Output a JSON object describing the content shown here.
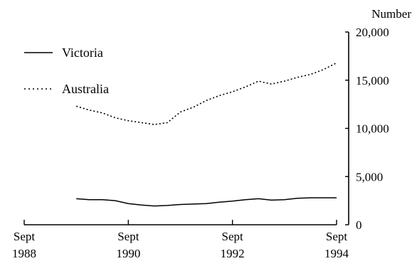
{
  "chart_data": {
    "type": "line",
    "title": "",
    "xlabel": "",
    "ylabel": "Number",
    "ylim": [
      0,
      20000
    ],
    "xlim": [
      1988.75,
      1994.75
    ],
    "y_ticks": [
      0,
      5000,
      10000,
      15000,
      20000
    ],
    "y_tick_labels": [
      "0",
      "5,000",
      "10,000",
      "15,000",
      "20,000"
    ],
    "x_ticks": [
      {
        "value": 1988.75,
        "line1": "Sept",
        "line2": "1988"
      },
      {
        "value": 1990.75,
        "line1": "Sept",
        "line2": "1990"
      },
      {
        "value": 1992.75,
        "line1": "Sept",
        "line2": "1992"
      },
      {
        "value": 1994.75,
        "line1": "Sept",
        "line2": "1994"
      }
    ],
    "legend_position": "top-left",
    "grid": false,
    "series": [
      {
        "name": "Victoria",
        "style": "solid",
        "color": "#000000",
        "x": [
          1989.75,
          1990.0,
          1990.25,
          1990.5,
          1990.75,
          1991.0,
          1991.25,
          1991.5,
          1991.75,
          1992.0,
          1992.25,
          1992.5,
          1992.75,
          1993.0,
          1993.25,
          1993.5,
          1993.75,
          1994.0,
          1994.25,
          1994.5,
          1994.75
        ],
        "values": [
          2700,
          2600,
          2600,
          2500,
          2200,
          2050,
          1950,
          2000,
          2100,
          2150,
          2200,
          2350,
          2450,
          2600,
          2700,
          2550,
          2600,
          2750,
          2800,
          2800,
          2800
        ]
      },
      {
        "name": "Australia",
        "style": "dotted",
        "color": "#000000",
        "x": [
          1989.75,
          1990.0,
          1990.25,
          1990.5,
          1990.75,
          1991.0,
          1991.25,
          1991.5,
          1991.75,
          1992.0,
          1992.25,
          1992.5,
          1992.75,
          1993.0,
          1993.25,
          1993.5,
          1993.75,
          1994.0,
          1994.25,
          1994.5,
          1994.75
        ],
        "values": [
          12300,
          11900,
          11600,
          11100,
          10800,
          10600,
          10400,
          10600,
          11700,
          12200,
          12900,
          13400,
          13800,
          14300,
          14900,
          14600,
          14900,
          15300,
          15600,
          16100,
          16800
        ]
      }
    ]
  }
}
